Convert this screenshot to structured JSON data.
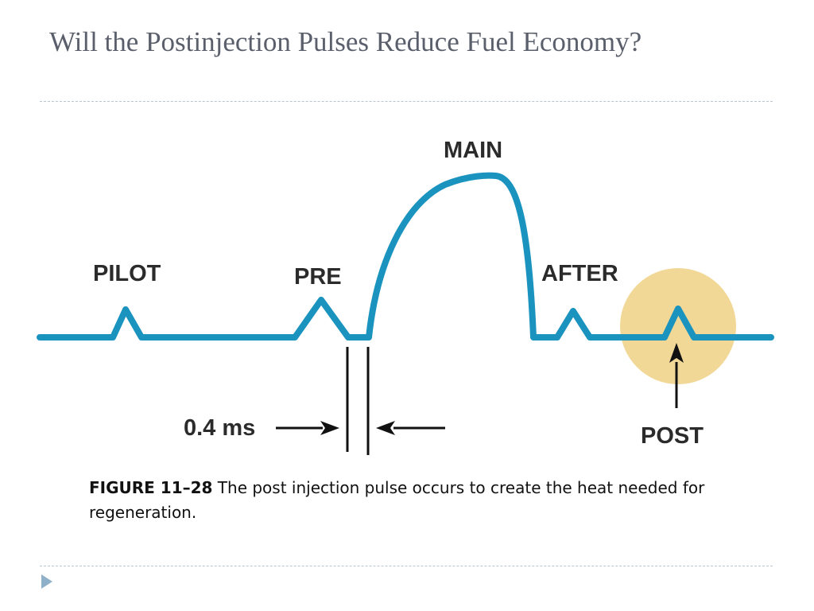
{
  "slide": {
    "title": "Will the Postinjection Pulses Reduce Fuel Economy?"
  },
  "diagram": {
    "labels": {
      "pilot": "PILOT",
      "pre": "PRE",
      "main": "MAIN",
      "after": "AFTER",
      "post": "POST",
      "interval": "0.4 ms"
    },
    "colors": {
      "pulse_line": "#1a93bf",
      "highlight": "#f2d897",
      "text": "#2b2b2b"
    }
  },
  "caption": {
    "figure_label": "FIGURE 11–28",
    "text": " The post injection pulse occurs to create the heat needed for regeneration."
  },
  "nav": {
    "icon": "triangle-right-icon"
  }
}
